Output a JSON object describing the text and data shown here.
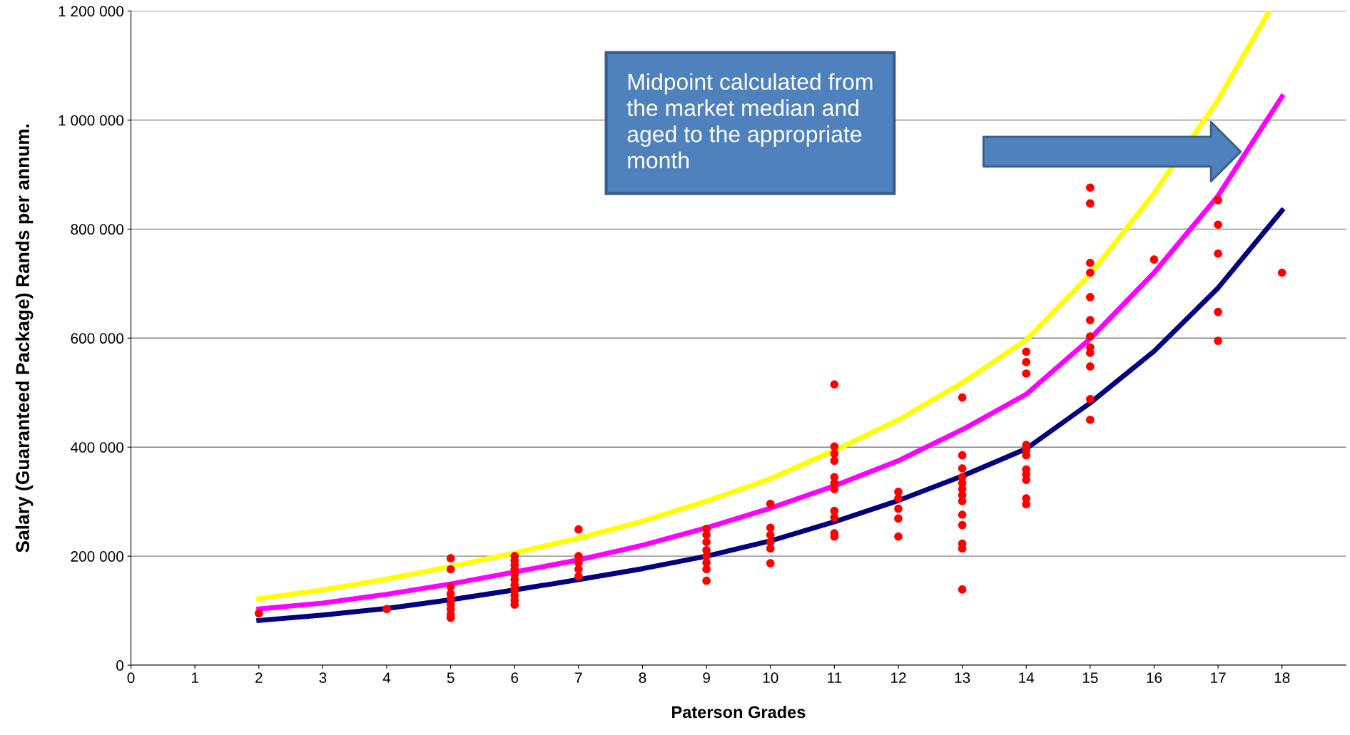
{
  "chart_data": {
    "type": "line",
    "xlabel": "Paterson Grades",
    "ylabel": "Salary (Guaranteed Package) Rands per annum.",
    "xlim": [
      0,
      19
    ],
    "xticks": [
      0,
      1,
      2,
      3,
      4,
      5,
      6,
      7,
      8,
      9,
      10,
      11,
      12,
      13,
      14,
      15,
      16,
      17,
      18
    ],
    "ylim": [
      0,
      1200000
    ],
    "yticks": [
      {
        "value": 0,
        "label": "0"
      },
      {
        "value": 200000,
        "label": "200 000"
      },
      {
        "value": 400000,
        "label": "400 000"
      },
      {
        "value": 600000,
        "label": "600 000"
      },
      {
        "value": 800000,
        "label": "800 000"
      },
      {
        "value": 1000000,
        "label": "1 000 000"
      },
      {
        "value": 1200000,
        "label": "1 200 000"
      }
    ],
    "grid": "y",
    "legend": false,
    "series": [
      {
        "color": "#ffff00",
        "marker": "none",
        "x": [
          2,
          3,
          4,
          5,
          6,
          7,
          8,
          9,
          10,
          11,
          12,
          13,
          14,
          15,
          16,
          17,
          17.8
        ],
        "values": [
          122000,
          138000,
          158000,
          181000,
          206000,
          233000,
          264000,
          301000,
          342000,
          394000,
          450000,
          518000,
          597000,
          717000,
          866000,
          1037000,
          1200000
        ]
      },
      {
        "color": "#ff00ff",
        "marker": "none",
        "x": [
          2,
          3,
          4,
          5,
          6,
          7,
          8,
          9,
          10,
          11,
          12,
          13,
          14,
          15,
          16,
          17,
          18
        ],
        "values": [
          103000,
          114000,
          130000,
          149000,
          171000,
          193000,
          220000,
          252000,
          288000,
          329000,
          375000,
          432000,
          497000,
          599000,
          720000,
          861000,
          1043000
        ]
      },
      {
        "color": "#000080",
        "marker": "none",
        "x": [
          2,
          3,
          4,
          5,
          6,
          7,
          8,
          9,
          10,
          11,
          12,
          13,
          14,
          15,
          16,
          17,
          18
        ],
        "values": [
          82000,
          92000,
          104000,
          120000,
          138000,
          157000,
          177000,
          200000,
          228000,
          263000,
          302000,
          347000,
          397000,
          481000,
          576000,
          692000,
          834000
        ]
      },
      {
        "type": "scatter",
        "color": "#ff0000",
        "marker": "circle",
        "x": [
          2,
          4,
          5,
          5,
          5,
          5,
          5,
          5,
          5,
          5,
          5,
          6,
          6,
          6,
          6,
          6,
          6,
          6,
          6,
          6,
          6,
          6,
          7,
          7,
          7,
          7,
          7,
          9,
          9,
          9,
          9,
          9,
          9,
          9,
          9,
          10,
          10,
          10,
          10,
          10,
          10,
          11,
          11,
          11,
          11,
          11,
          11,
          11,
          11,
          11,
          11,
          11,
          12,
          12,
          12,
          12,
          12,
          13,
          13,
          13,
          13,
          13,
          13,
          13,
          13,
          13,
          13,
          13,
          13,
          13,
          14,
          14,
          14,
          14,
          14,
          14,
          14,
          14,
          14,
          14,
          14,
          15,
          15,
          15,
          15,
          15,
          15,
          15,
          15,
          15,
          15,
          15,
          15,
          16,
          17,
          17,
          17,
          17,
          17,
          18
        ],
        "values": [
          95000,
          103000,
          196000,
          176000,
          144000,
          131000,
          122000,
          112000,
          103000,
          93000,
          87000,
          200000,
          192000,
          184000,
          176000,
          166000,
          157000,
          147000,
          138000,
          128000,
          119000,
          111000,
          249000,
          200000,
          188000,
          176000,
          163000,
          250000,
          239000,
          226000,
          211000,
          200000,
          188000,
          176000,
          155000,
          296000,
          252000,
          239000,
          226000,
          214000,
          187000,
          515000,
          401000,
          388000,
          375000,
          345000,
          334000,
          323000,
          283000,
          271000,
          242000,
          236000,
          318000,
          306000,
          287000,
          269000,
          236000,
          491000,
          385000,
          361000,
          345000,
          334000,
          323000,
          312000,
          301000,
          276000,
          257000,
          223000,
          214000,
          139000,
          575000,
          556000,
          535000,
          404000,
          394000,
          385000,
          359000,
          350000,
          340000,
          306000,
          295000,
          876000,
          847000,
          738000,
          720000,
          675000,
          633000,
          603000,
          583000,
          573000,
          548000,
          488000,
          450000,
          744000,
          853000,
          808000,
          755000,
          648000,
          595000,
          720000
        ]
      }
    ],
    "annotations": [
      "Midpoint calculated from\nthe market median and\naged to the appropriate\nmonth"
    ]
  }
}
